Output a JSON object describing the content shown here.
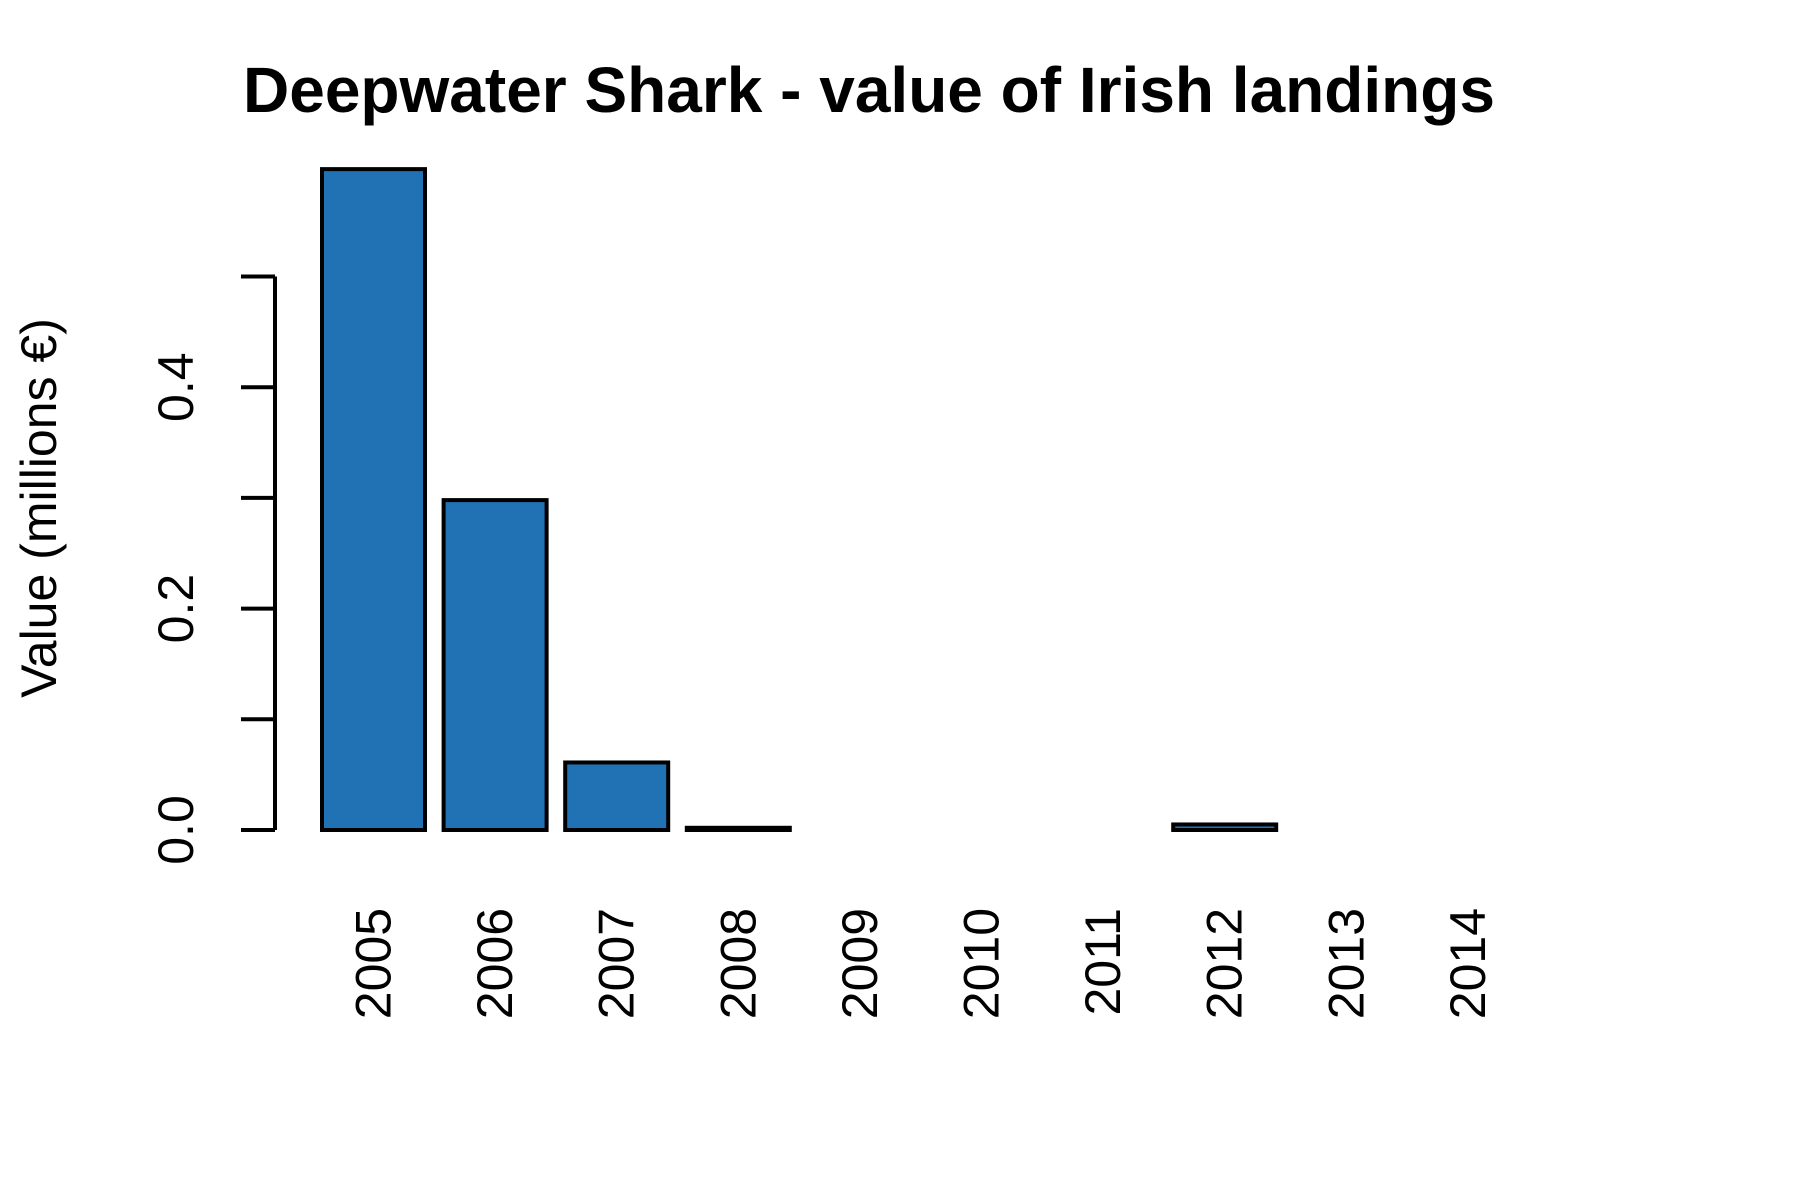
{
  "chart_data": {
    "type": "bar",
    "title": "Deepwater Shark - value of Irish landings",
    "ylabel": "Value (millions €)",
    "xlabel": "",
    "categories": [
      "2005",
      "2006",
      "2007",
      "2008",
      "2009",
      "2010",
      "2011",
      "2012",
      "2013",
      "2014"
    ],
    "values": [
      0.597,
      0.298,
      0.061,
      0.002,
      0,
      0,
      0,
      0.005,
      0,
      0
    ],
    "ylim": [
      0,
      0.6
    ],
    "yticks": [
      0.0,
      0.1,
      0.2,
      0.3,
      0.4,
      0.5
    ],
    "ytick_labels": [
      "0.0",
      "",
      "0.2",
      "",
      "0.4",
      ""
    ],
    "bar_color": "#2171b5",
    "grid": false
  }
}
